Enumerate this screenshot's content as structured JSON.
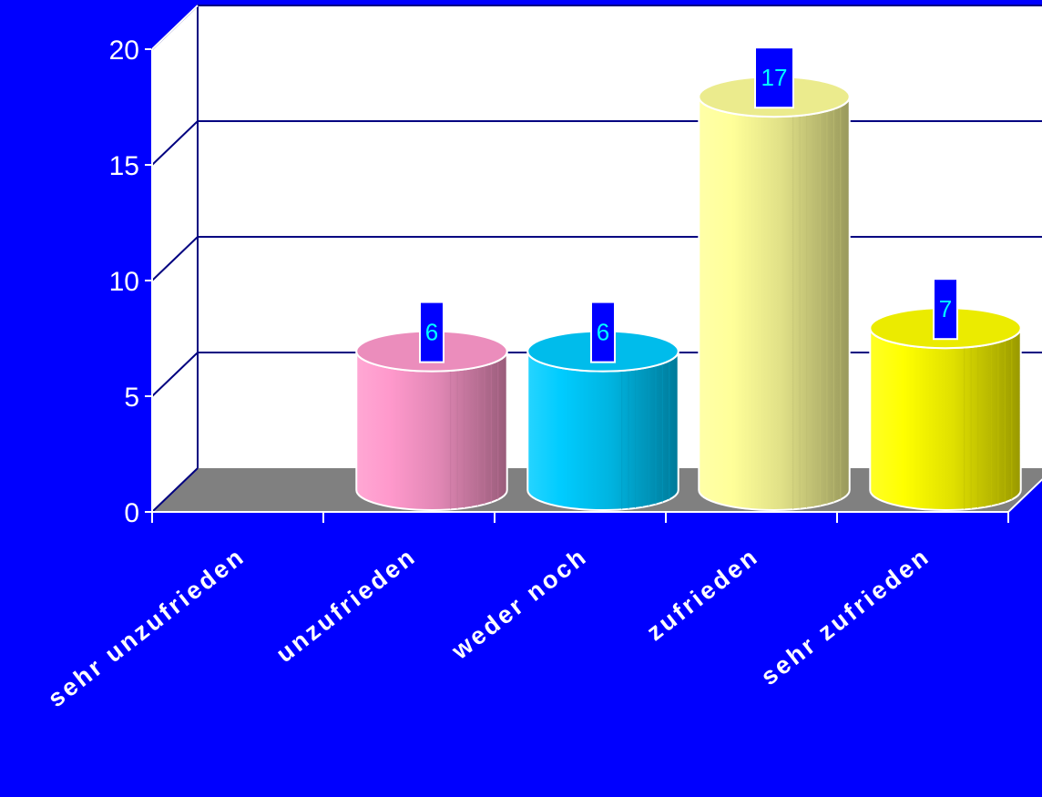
{
  "chart_data": {
    "type": "bar",
    "style": "3d-cylinder",
    "categories": [
      "sehr unzufrieden",
      "unzufrieden",
      "weder noch",
      "zufrieden",
      "sehr zufrieden"
    ],
    "values": [
      0,
      6,
      6,
      17,
      7
    ],
    "data_labels": [
      "",
      "6",
      "6",
      "17",
      "7"
    ],
    "y_tick_labels": [
      "0",
      "5",
      "10",
      "15",
      "20"
    ],
    "y_ticks": [
      0,
      5,
      10,
      15,
      20
    ],
    "ylim": [
      0,
      20
    ],
    "grid": true,
    "legend": "none",
    "colors": {
      "background": "#0000ff",
      "plot_wall": "#ffffff",
      "floor": "#808080",
      "gridline": "#000080",
      "label_box": "#0000ff",
      "label_text": "#00ffff",
      "bars": [
        "#ff99cc",
        "#ff99cc",
        "#00ccff",
        "#ffff99",
        "#ffff00"
      ]
    }
  }
}
